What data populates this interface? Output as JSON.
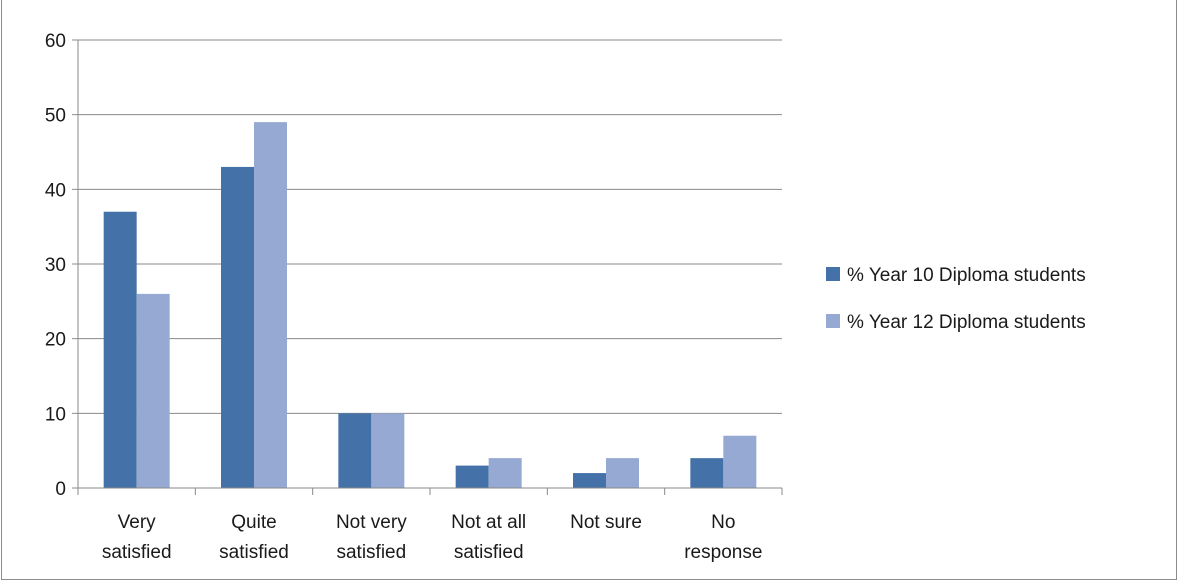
{
  "chart_data": {
    "type": "bar",
    "title": "",
    "xlabel": "",
    "ylabel": "",
    "categories": [
      [
        "Very",
        "satisfied"
      ],
      [
        "Quite",
        "satisfied"
      ],
      [
        "Not very",
        "satisfied"
      ],
      [
        "Not at all",
        "satisfied"
      ],
      [
        "Not sure"
      ],
      [
        "No",
        "response"
      ]
    ],
    "series": [
      {
        "name": "% Year 10 Diploma students",
        "color": "#4472a8",
        "values": [
          37,
          43,
          10,
          3,
          2,
          4
        ]
      },
      {
        "name": "% Year 12 Diploma students",
        "color": "#95a9d3",
        "values": [
          26,
          49,
          10,
          4,
          4,
          7
        ]
      }
    ],
    "ylim": [
      0,
      60
    ],
    "yticks": [
      "0",
      "10",
      "20",
      "30",
      "40",
      "50",
      "60"
    ],
    "grid": true,
    "legend_position": "right"
  }
}
